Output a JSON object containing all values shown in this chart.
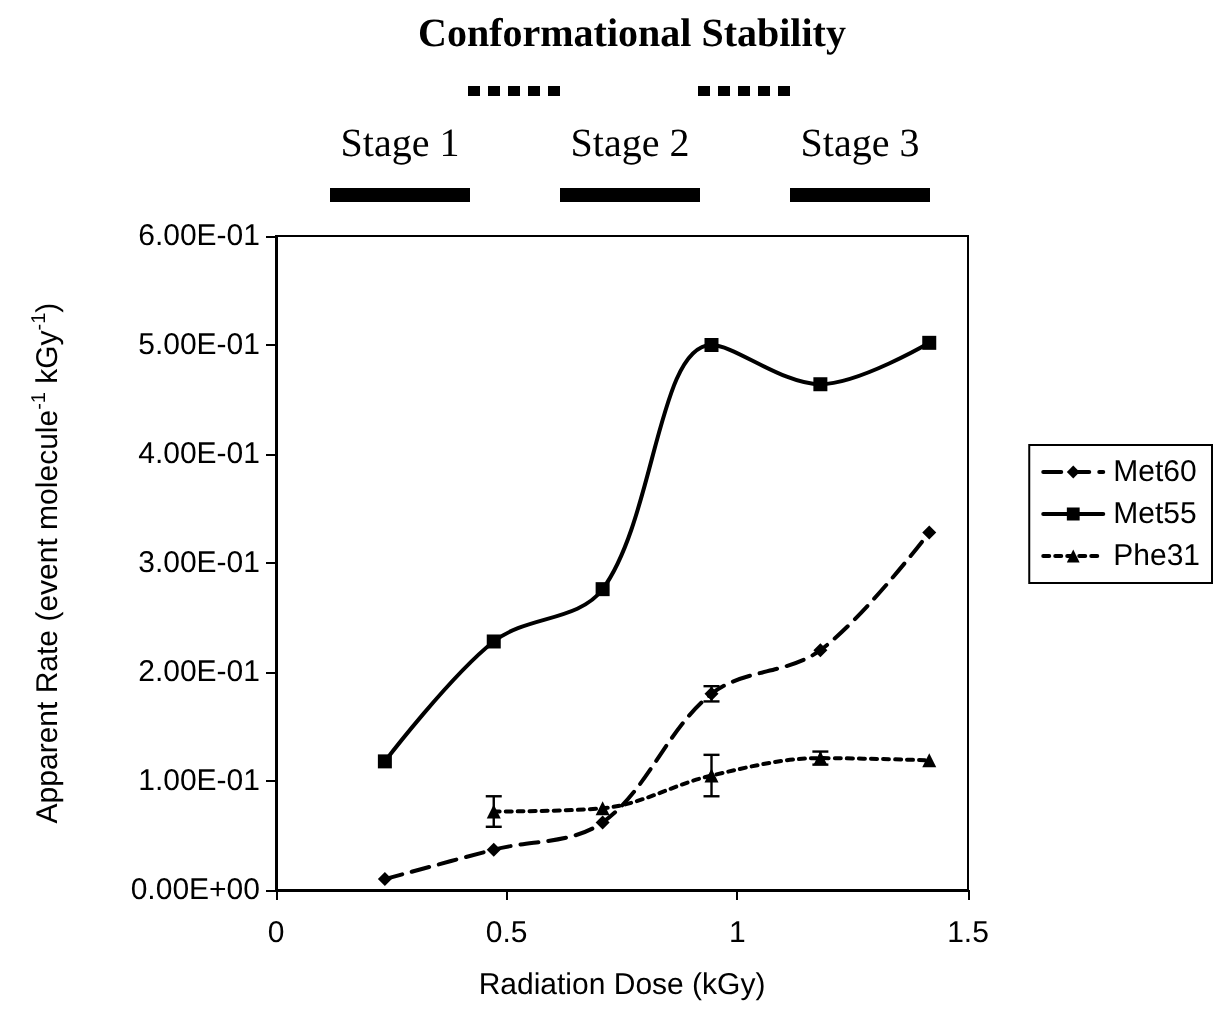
{
  "chart_data": {
    "type": "line",
    "title": "Conformational Stability",
    "xlabel": "Radiation Dose (kGy)",
    "ylabel": "Apparent Rate (event molecule$^{-1}$ kGy$^{-1}$)",
    "x": [
      0.236,
      0.472,
      0.708,
      0.944,
      1.18,
      1.416
    ],
    "series": [
      {
        "name": "Met60",
        "color": "#000000",
        "marker": "diamond",
        "line_style": "dashed",
        "values": [
          0.01,
          0.037,
          0.062,
          0.18,
          0.22,
          0.328
        ],
        "errors": [
          null,
          null,
          null,
          0.007,
          null,
          null
        ]
      },
      {
        "name": "Met55",
        "color": "#000000",
        "marker": "square",
        "line_style": "solid",
        "values": [
          0.118,
          0.228,
          0.276,
          0.5,
          0.464,
          0.502
        ]
      },
      {
        "name": "Phe31",
        "color": "#000000",
        "marker": "triangle",
        "line_style": "dotted",
        "values": [
          null,
          0.072,
          0.075,
          0.105,
          0.121,
          0.119
        ],
        "errors": [
          null,
          0.014,
          null,
          0.019,
          0.006,
          null
        ]
      }
    ],
    "xlim": [
      0,
      1.5
    ],
    "xticks": [
      0,
      0.5,
      1,
      1.5
    ],
    "ylim": [
      0,
      0.6
    ],
    "yticks": [
      {
        "value": 0,
        "label": "0.00E+00"
      },
      {
        "value": 0.1,
        "label": "1.00E-01"
      },
      {
        "value": 0.2,
        "label": "2.00E-01"
      },
      {
        "value": 0.3,
        "label": "3.00E-01"
      },
      {
        "value": 0.4,
        "label": "4.00E-01"
      },
      {
        "value": 0.5,
        "label": "5.00E-01"
      },
      {
        "value": 0.6,
        "label": "6.00E-01"
      }
    ],
    "annotations": [
      "Stage 1",
      "Stage 2",
      "Stage 3"
    ],
    "grid": false,
    "legend": "right"
  }
}
